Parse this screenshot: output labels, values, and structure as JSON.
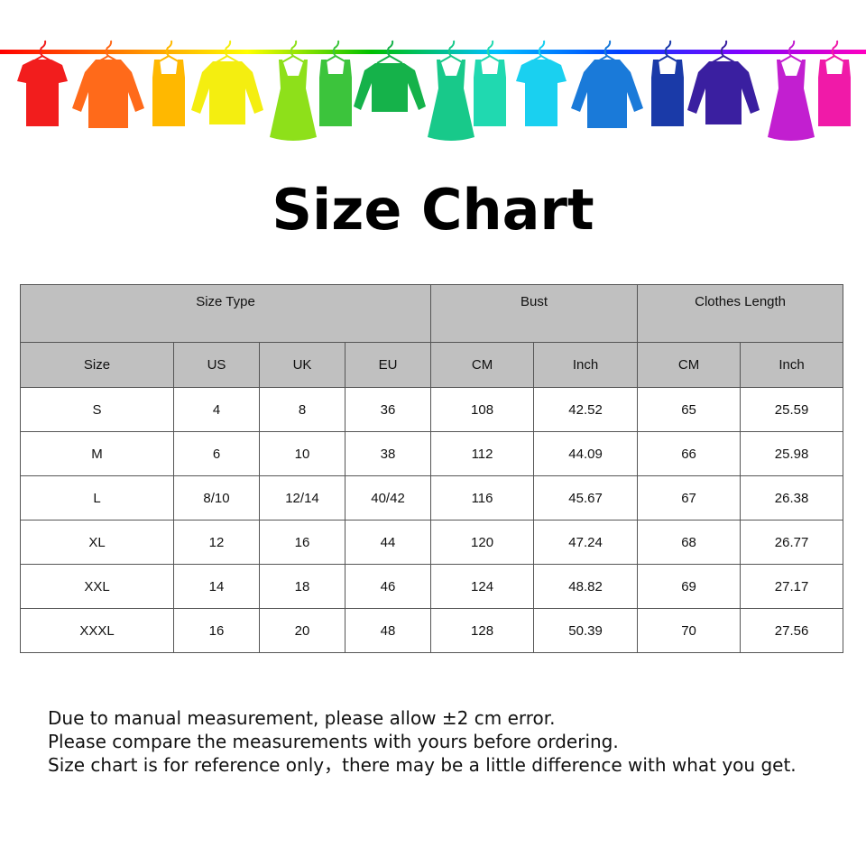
{
  "banner": {
    "rail_colors": [
      "#ff0000",
      "#ff8000",
      "#ffff00",
      "#00c000",
      "#00c0ff",
      "#0040ff",
      "#8000ff",
      "#ff00c0"
    ],
    "garments": [
      {
        "type": "tshirt",
        "color": "#f21d1d"
      },
      {
        "type": "shirt",
        "color": "#ff6a1a"
      },
      {
        "type": "tank",
        "color": "#ffb800"
      },
      {
        "type": "sweater",
        "color": "#f4ee10"
      },
      {
        "type": "dress",
        "color": "#8ee01a"
      },
      {
        "type": "tank",
        "color": "#3cc43c"
      },
      {
        "type": "longsleeve",
        "color": "#15b24a"
      },
      {
        "type": "dress",
        "color": "#18c98a"
      },
      {
        "type": "tank",
        "color": "#20d9b0"
      },
      {
        "type": "tshirt",
        "color": "#1ad0f0"
      },
      {
        "type": "shirt",
        "color": "#1a7ad9"
      },
      {
        "type": "tank",
        "color": "#1a3aa8"
      },
      {
        "type": "sweater",
        "color": "#3a1fa0"
      },
      {
        "type": "dress",
        "color": "#c21fd0"
      },
      {
        "type": "tank",
        "color": "#f01aa8"
      }
    ]
  },
  "title": "Size Chart",
  "table": {
    "group_headers": [
      "Size Type",
      "Bust",
      "Clothes Length"
    ],
    "columns": [
      "Size",
      "US",
      "UK",
      "EU",
      "CM",
      "Inch",
      "CM",
      "Inch"
    ],
    "rows": [
      [
        "S",
        "4",
        "8",
        "36",
        "108",
        "42.52",
        "65",
        "25.59"
      ],
      [
        "M",
        "6",
        "10",
        "38",
        "112",
        "44.09",
        "66",
        "25.98"
      ],
      [
        "L",
        "8/10",
        "12/14",
        "40/42",
        "116",
        "45.67",
        "67",
        "26.38"
      ],
      [
        "XL",
        "12",
        "16",
        "44",
        "120",
        "47.24",
        "68",
        "26.77"
      ],
      [
        "XXL",
        "14",
        "18",
        "46",
        "124",
        "48.82",
        "69",
        "27.17"
      ],
      [
        "XXXL",
        "16",
        "20",
        "48",
        "128",
        "50.39",
        "70",
        "27.56"
      ]
    ]
  },
  "notes": [
    "Due to manual measurement, please allow ±2 cm error.",
    "Please compare the measurements with yours before ordering.",
    "Size chart is for reference only，there may be a little difference with what you get."
  ]
}
